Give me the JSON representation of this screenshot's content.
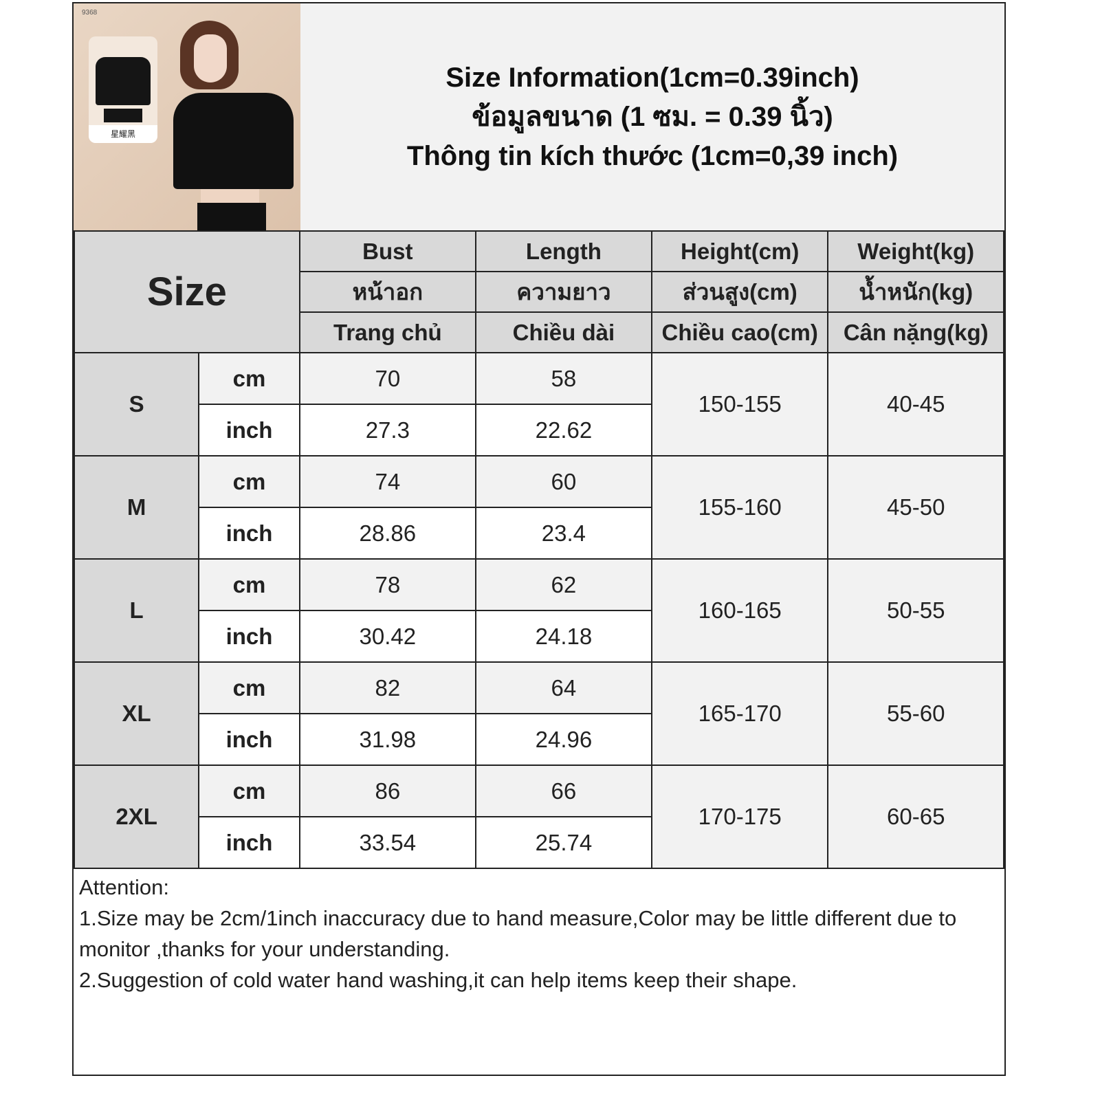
{
  "photo": {
    "product_code": "9368",
    "inset_label": "星耀黑"
  },
  "title": {
    "line1": "Size Information(1cm=0.39inch)",
    "line2": "ข้อมูลขนาด (1 ซม. = 0.39 นิ้ว)",
    "line3": "Thông tin kích thước (1cm=0,39 inch)"
  },
  "table": {
    "size_header": "Size",
    "columns": [
      {
        "en": "Bust",
        "th": "หน้าอก",
        "vi": "Trang chủ"
      },
      {
        "en": "Length",
        "th": "ความยาว",
        "vi": "Chiều dài"
      },
      {
        "en": "Height(cm)",
        "th": "ส่วนสูง(cm)",
        "vi": "Chiều cao(cm)"
      },
      {
        "en": "Weight(kg)",
        "th": "น้ำหนัก(kg)",
        "vi": "Cân nặng(kg)"
      }
    ],
    "unit_cm": "cm",
    "unit_inch": "inch",
    "rows": [
      {
        "size": "S",
        "bust_cm": "70",
        "length_cm": "58",
        "bust_inch": "27.3",
        "length_inch": "22.62",
        "height": "150-155",
        "weight": "40-45"
      },
      {
        "size": "M",
        "bust_cm": "74",
        "length_cm": "60",
        "bust_inch": "28.86",
        "length_inch": "23.4",
        "height": "155-160",
        "weight": "45-50"
      },
      {
        "size": "L",
        "bust_cm": "78",
        "length_cm": "62",
        "bust_inch": "30.42",
        "length_inch": "24.18",
        "height": "160-165",
        "weight": "50-55"
      },
      {
        "size": "XL",
        "bust_cm": "82",
        "length_cm": "64",
        "bust_inch": "31.98",
        "length_inch": "24.96",
        "height": "165-170",
        "weight": "55-60"
      },
      {
        "size": "2XL",
        "bust_cm": "86",
        "length_cm": "66",
        "bust_inch": "33.54",
        "length_inch": "25.74",
        "height": "170-175",
        "weight": "60-65"
      }
    ]
  },
  "attention": {
    "heading": "Attention:",
    "line1": "1.Size may be 2cm/1inch inaccuracy due to hand measure,Color may be little different due to monitor ,thanks for your understanding.",
    "line2": "2.Suggestion of cold water hand washing,it can help items keep their shape."
  }
}
